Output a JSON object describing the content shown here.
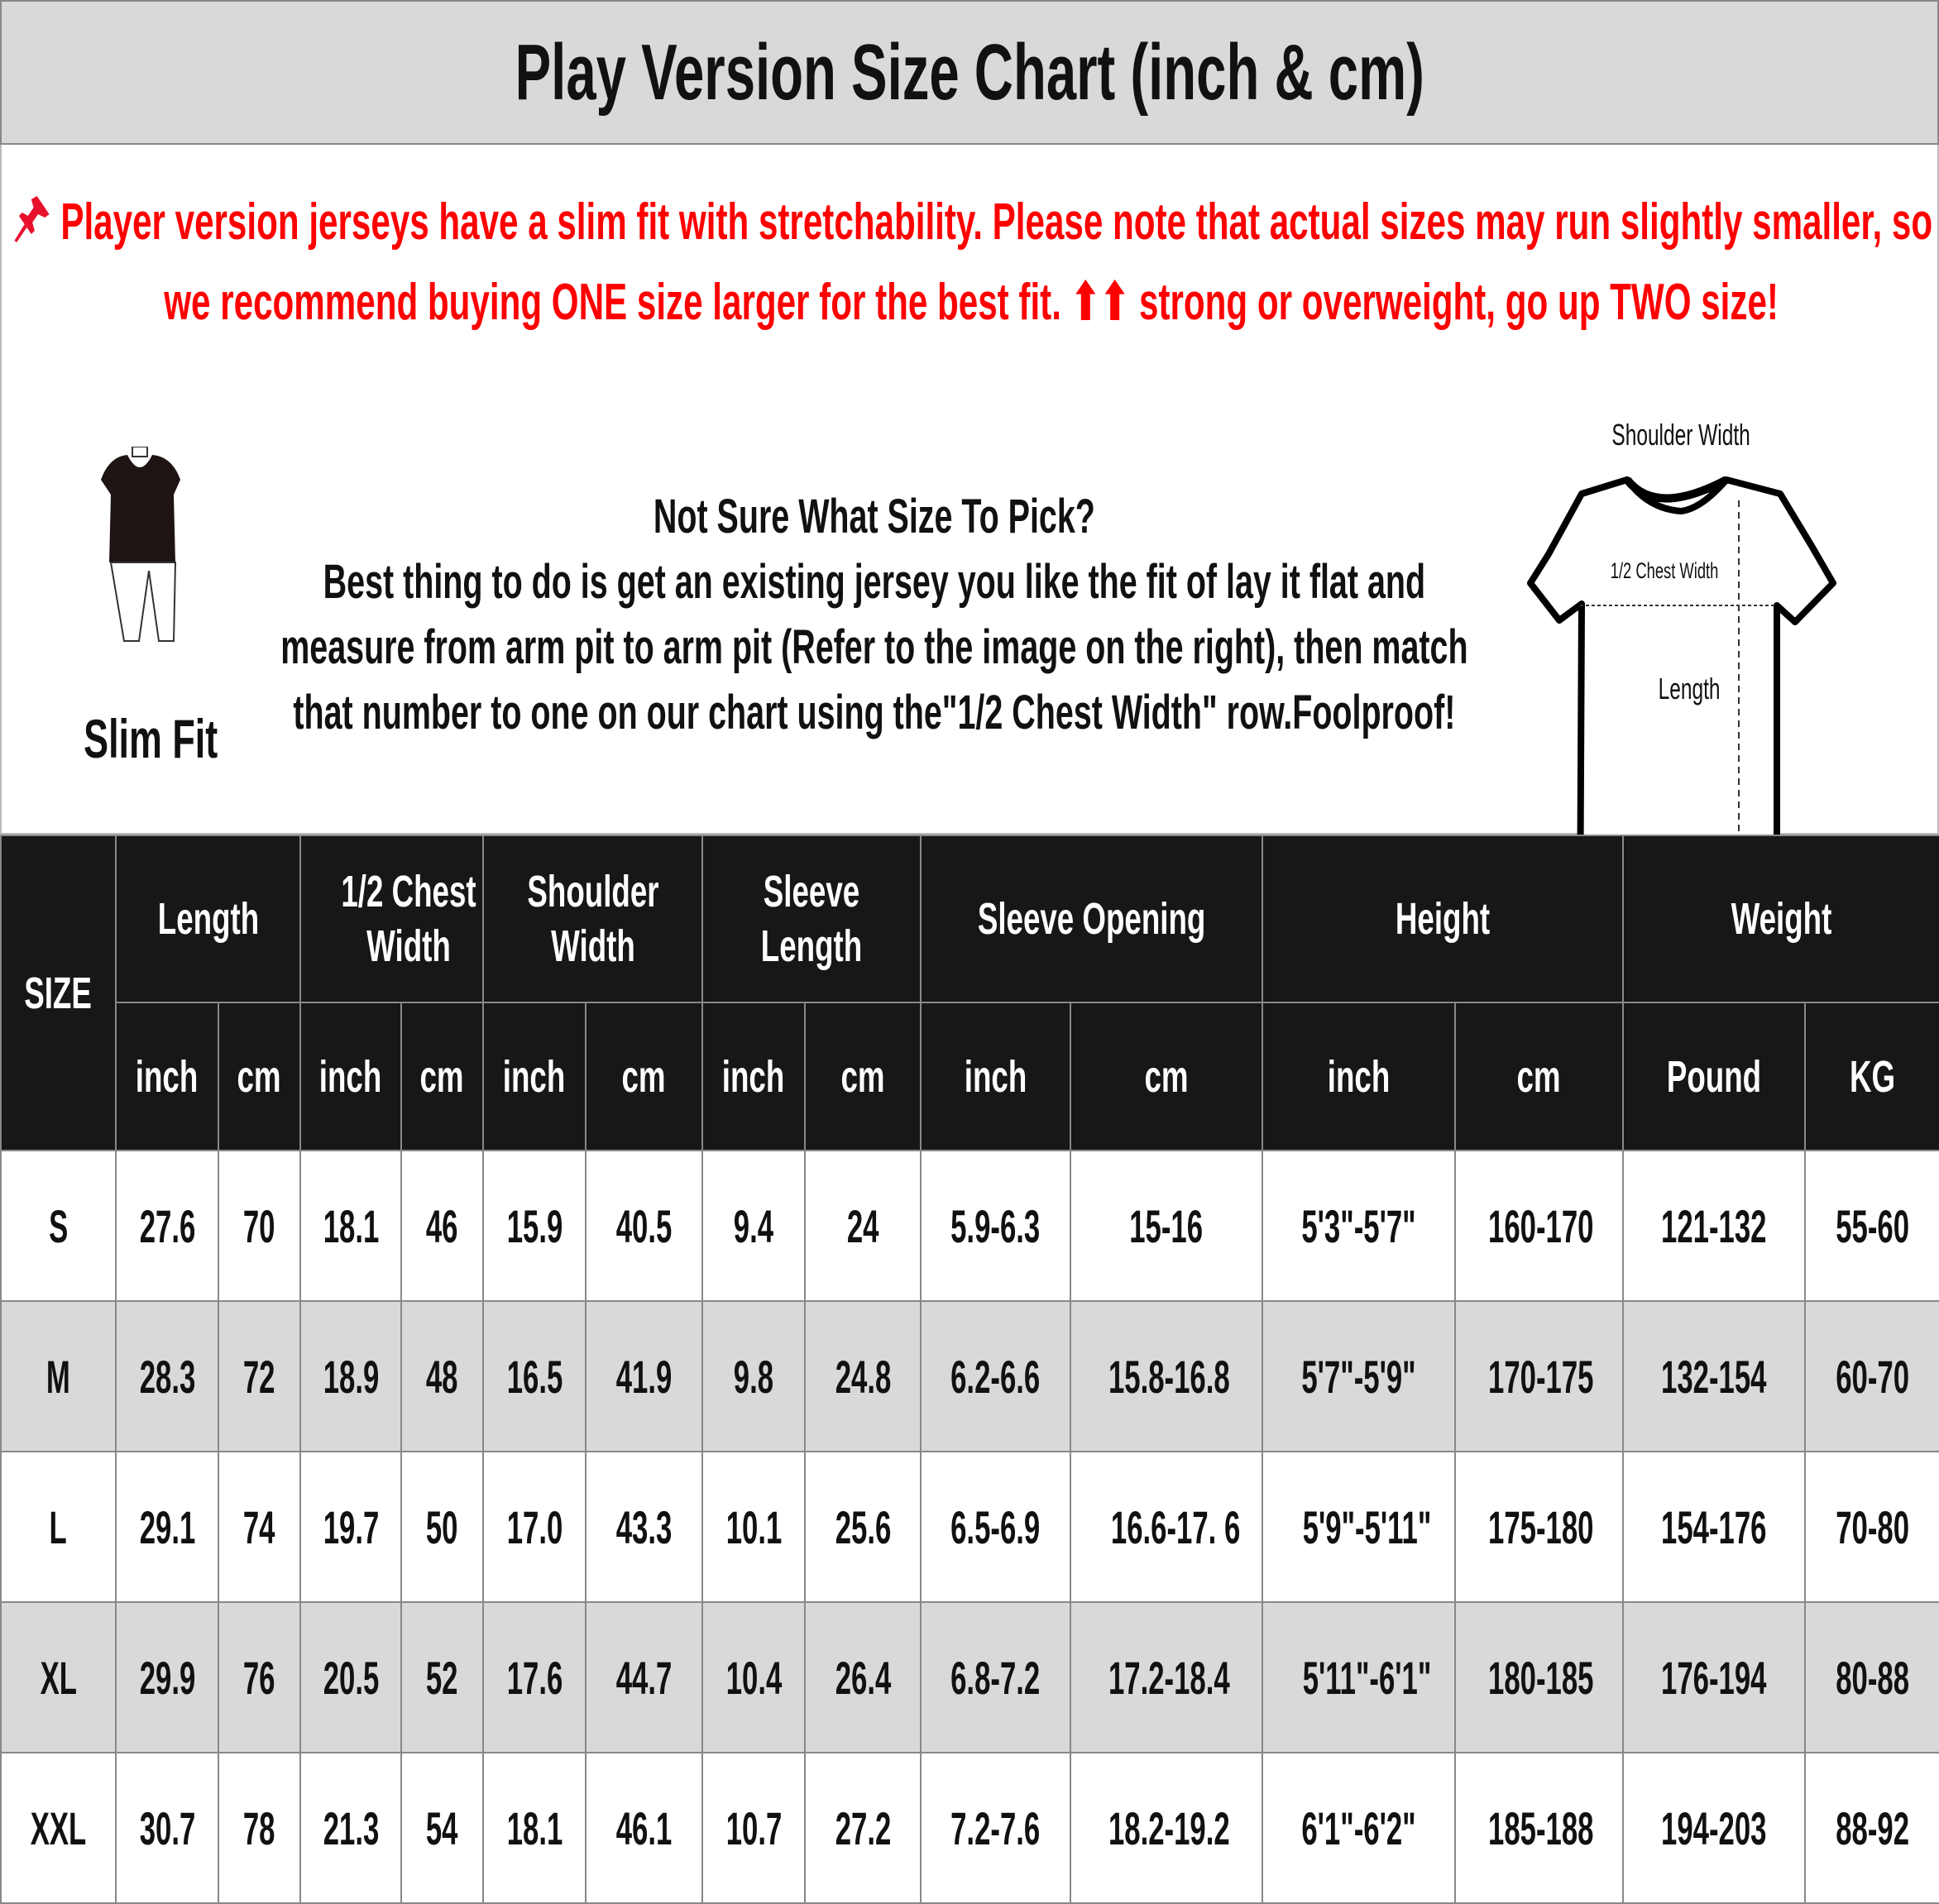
{
  "title": "Play Version Size Chart (inch & cm)",
  "note": {
    "icon": "pushpin-icon",
    "color": "#ff0000",
    "text": "Player version jerseys have a slim fit with stretchability. Please note that actual sizes may run slightly smaller, so we recommend buying ONE size larger for the best fit. ⬆⬆ strong or overweight, go up TWO size!"
  },
  "fit_label": "Slim Fit",
  "guide": {
    "heading": "Not Sure What Size To Pick?",
    "body": "Best thing to do is get an existing jersey you like the fit of lay it flat and measure from arm pit to arm pit (Refer to the image on the right), then match that number to one on our chart using the\"1/2 Chest Width\" row.Foolproof!"
  },
  "diagram": {
    "shoulder_width": "Shoulder Width",
    "chest_width": "1/2 Chest Width",
    "length": "Length"
  },
  "table": {
    "size_header": "SIZE",
    "groups": [
      {
        "label": "Length",
        "units": [
          "inch",
          "cm"
        ]
      },
      {
        "label": "1/2 Chest Width",
        "units": [
          "inch",
          "cm"
        ]
      },
      {
        "label": "Shoulder Width",
        "units": [
          "inch",
          "cm"
        ]
      },
      {
        "label": "Sleeve Length",
        "units": [
          "inch",
          "cm"
        ]
      },
      {
        "label": "Sleeve Opening",
        "units": [
          "inch",
          "cm"
        ]
      },
      {
        "label": "Height",
        "units": [
          "inch",
          "cm"
        ]
      },
      {
        "label": "Weight",
        "units": [
          "Pound",
          "KG"
        ]
      }
    ],
    "rows": [
      [
        "S",
        "27.6",
        "70",
        "18.1",
        "46",
        "15.9",
        "40.5",
        "9.4",
        "24",
        "5.9-6.3",
        "15-16",
        "5'3\"-5'7\"",
        "160-170",
        "121-132",
        "55-60"
      ],
      [
        "M",
        "28.3",
        "72",
        "18.9",
        "48",
        "16.5",
        "41.9",
        "9.8",
        "24.8",
        "6.2-6.6",
        "15.8-16.8",
        "5'7\"-5'9\"",
        "170-175",
        "132-154",
        "60-70"
      ],
      [
        "L",
        "29.1",
        "74",
        "19.7",
        "50",
        "17.0",
        "43.3",
        "10.1",
        "25.6",
        "6.5-6.9",
        "16.6-17. 6",
        "5'9\"-5'11\"",
        "175-180",
        "154-176",
        "70-80"
      ],
      [
        "XL",
        "29.9",
        "76",
        "20.5",
        "52",
        "17.6",
        "44.7",
        "10.4",
        "26.4",
        "6.8-7.2",
        "17.2-18.4",
        "5'11\"-6'1\"",
        "180-185",
        "176-194",
        "80-88"
      ],
      [
        "XXL",
        "30.7",
        "78",
        "21.3",
        "54",
        "18.1",
        "46.1",
        "10.7",
        "27.2",
        "7.2-7.6",
        "18.2-19.2",
        "6'1\"-6'2\"",
        "185-188",
        "194-203",
        "88-92"
      ]
    ]
  }
}
